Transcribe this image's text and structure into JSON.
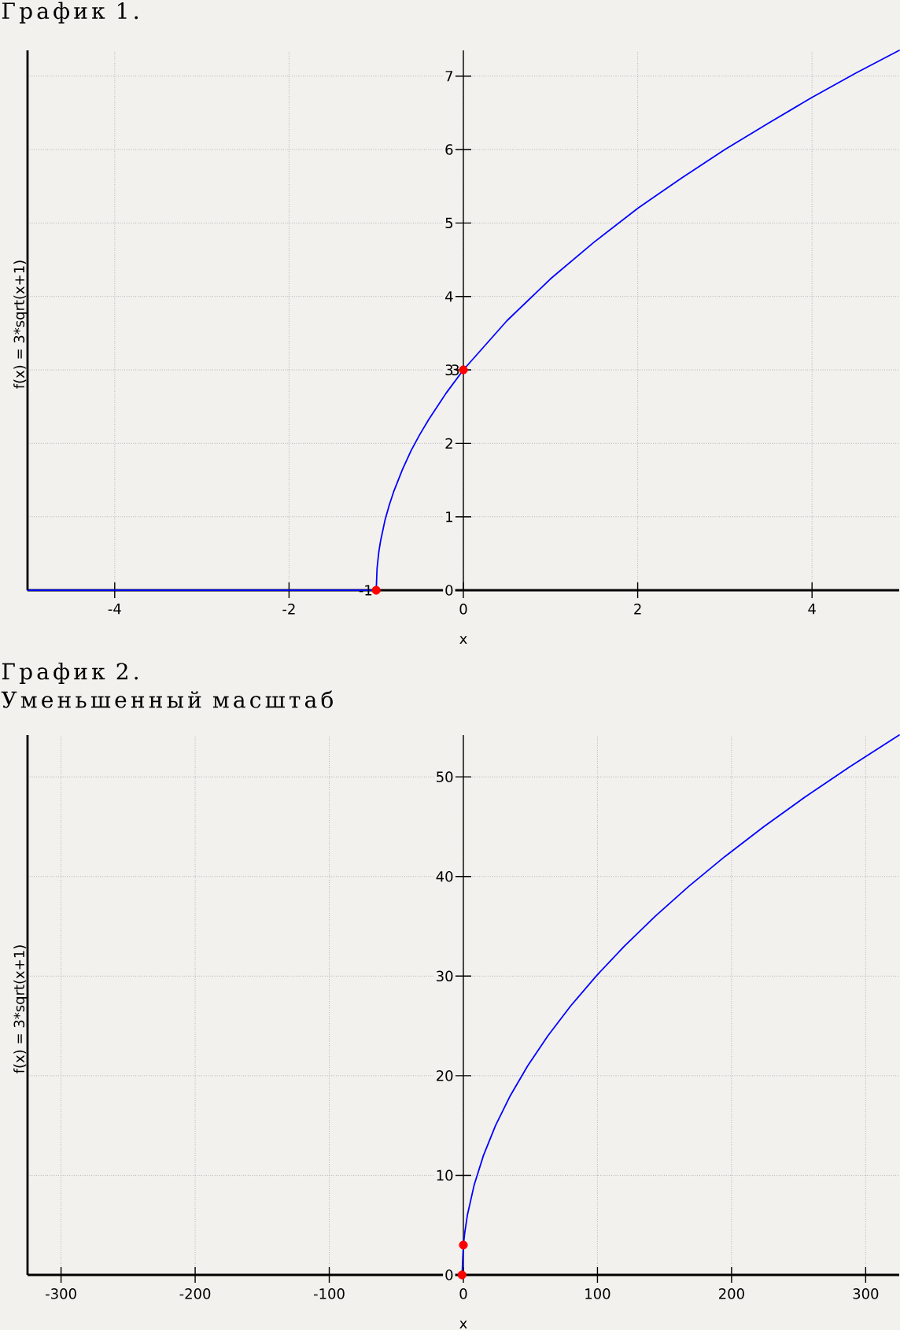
{
  "chart_data": [
    {
      "type": "line",
      "title": "График 1.",
      "xlabel": "x",
      "ylabel": "f(x) = 3*sqrt(x+1)",
      "xlim": [
        -5,
        5
      ],
      "ylim": [
        0,
        7.35
      ],
      "xticks": [
        -4,
        -2,
        0,
        2,
        4
      ],
      "yticks": [
        0,
        1,
        2,
        3,
        4,
        5,
        6,
        7
      ],
      "grid": true,
      "annotations": [
        {
          "text": "-1",
          "x": -1,
          "y": 0
        },
        {
          "text": "3",
          "x": 0,
          "y": 3
        }
      ],
      "series": [
        {
          "color": "#0000ff",
          "x": [
            -5,
            -1,
            -0.99,
            -0.97,
            -0.95,
            -0.9,
            -0.85,
            -0.8,
            -0.7,
            -0.6,
            -0.5,
            -0.4,
            -0.2,
            0,
            0.5,
            1,
            1.5,
            2,
            2.5,
            3,
            3.5,
            4,
            4.5,
            5
          ],
          "values": [
            0,
            0,
            0.3,
            0.52,
            0.67,
            0.95,
            1.16,
            1.34,
            1.64,
            1.9,
            2.12,
            2.32,
            2.68,
            3,
            3.67,
            4.24,
            4.74,
            5.2,
            5.61,
            6,
            6.36,
            6.71,
            7.04,
            7.35
          ]
        },
        {
          "type": "scatter",
          "color": "#ff0000",
          "marker": "circle",
          "x": [
            -1,
            0
          ],
          "values": [
            0,
            3
          ]
        }
      ]
    },
    {
      "type": "line",
      "title": "График 2.",
      "subtitle": "Уменьшенный масштаб",
      "xlabel": "x",
      "ylabel": "f(x) = 3*sqrt(x+1)",
      "xlim": [
        -325,
        325
      ],
      "ylim": [
        0,
        54.2
      ],
      "xticks": [
        -300,
        -200,
        -100,
        0,
        100,
        200,
        300
      ],
      "yticks": [
        0,
        10,
        20,
        30,
        40,
        50
      ],
      "grid": true,
      "series": [
        {
          "color": "#0000ff",
          "x": [
            -1,
            0,
            1,
            3,
            8,
            15,
            24,
            35,
            48,
            63,
            80,
            99,
            120,
            143,
            168,
            195,
            224,
            255,
            288,
            325
          ],
          "values": [
            0,
            3,
            4.2,
            6,
            9,
            12,
            15,
            18,
            21,
            24,
            27,
            30,
            33,
            36,
            39,
            42,
            45,
            48,
            51,
            54.2
          ]
        },
        {
          "type": "scatter",
          "color": "#ff0000",
          "marker": "circle",
          "x": [
            -1,
            0
          ],
          "values": [
            0,
            3
          ]
        }
      ]
    }
  ]
}
